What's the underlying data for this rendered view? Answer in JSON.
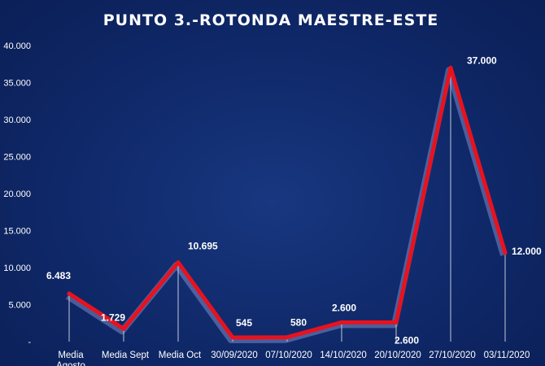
{
  "chart_data": {
    "type": "line",
    "title": "PUNTO 3.-ROTONDA  MAESTRE-ESTE",
    "categories": [
      "Media Agosto",
      "Media Sept",
      "Media Oct",
      "30/09/2020",
      "07/10/2020",
      "14/10/2020",
      "20/10/2020",
      "27/10/2020",
      "03/11/2020"
    ],
    "category_labels": [
      "Media\nAgosto",
      "Media Sept",
      "Media Oct",
      "30/09/2020",
      "07/10/2020",
      "14/10/2020",
      "20/10/2020",
      "27/10/2020",
      "03/11/2020"
    ],
    "values": [
      6483,
      1729,
      10695,
      545,
      580,
      2600,
      2600,
      37000,
      12000
    ],
    "data_labels": [
      "6.483",
      "1.729",
      "10.695",
      "545",
      "580",
      "2.600",
      "2.600",
      "37.000",
      "12.000"
    ],
    "y_ticks": [
      0,
      5000,
      10000,
      15000,
      20000,
      25000,
      30000,
      35000,
      40000
    ],
    "y_tick_labels": [
      "-",
      "5.000",
      "10.000",
      "15.000",
      "20.000",
      "25.000",
      "30.000",
      "35.000",
      "40.000"
    ],
    "ylim": [
      0,
      40000
    ],
    "xlabel": "",
    "ylabel": "",
    "grid": false,
    "legend": "none",
    "colors": {
      "background": "#0f2868",
      "line": "#e8121e",
      "line_shadow": "#b8c4ff",
      "text": "#ffffff",
      "drop_line": "#ffffff"
    }
  }
}
